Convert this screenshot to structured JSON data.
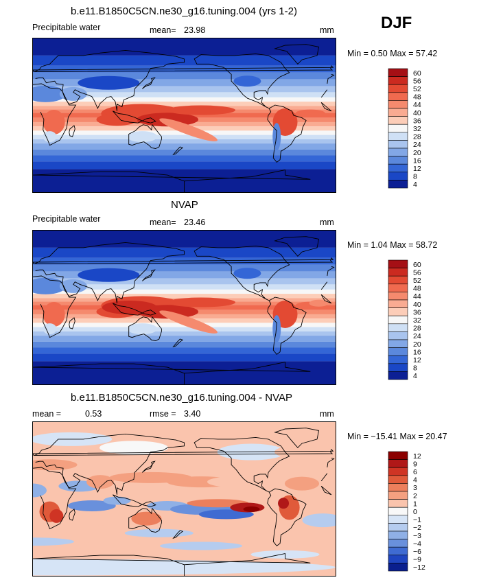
{
  "season": "DJF",
  "panels": [
    {
      "title": "b.e11.B1850C5CN.ne30_g16.tuning.004 (yrs 1-2)",
      "field": "Precipitable water",
      "stat1_label": "mean=",
      "stat1_value": "23.98",
      "stat2_label": "",
      "stat2_value": "",
      "units": "mm",
      "minmax": "Min =    0.50 Max =   57.42"
    },
    {
      "title": "NVAP",
      "field": "Precipitable water",
      "stat1_label": "mean=",
      "stat1_value": "23.46",
      "stat2_label": "",
      "stat2_value": "",
      "units": "mm",
      "minmax": "Min =    1.04 Max =   58.72"
    },
    {
      "title": "b.e11.B1850C5CN.ne30_g16.tuning.004 - NVAP",
      "field": "",
      "stat1_label": "mean =",
      "stat1_value": "0.53",
      "stat2_label": "rmse =",
      "stat2_value": "3.40",
      "units": "mm",
      "minmax": "Min =  −15.41 Max =   20.47"
    }
  ],
  "chart_data": [
    {
      "type": "heatmap",
      "title": "b.e11.B1850C5CN.ne30_g16.tuning.004 (yrs 1-2)",
      "variable": "Precipitable water",
      "units": "mm",
      "mean": 23.98,
      "min": 0.5,
      "max": 57.42,
      "colorbar_levels": [
        "60",
        "56",
        "52",
        "48",
        "44",
        "40",
        "36",
        "32",
        "28",
        "24",
        "20",
        "16",
        "12",
        "8",
        "4"
      ],
      "colorbar_colors": [
        "#a50f15",
        "#cb2a20",
        "#e34a33",
        "#f06a4f",
        "#f58a6e",
        "#f9ab92",
        "#fccdb8",
        "#f7f7f7",
        "#cfe0f5",
        "#a9c4ee",
        "#82a7e6",
        "#5b88dc",
        "#3466d6",
        "#1a47c6",
        "#0c1f94"
      ]
    },
    {
      "type": "heatmap",
      "title": "NVAP",
      "variable": "Precipitable water",
      "units": "mm",
      "mean": 23.46,
      "min": 1.04,
      "max": 58.72,
      "colorbar_levels": [
        "60",
        "56",
        "52",
        "48",
        "44",
        "40",
        "36",
        "32",
        "28",
        "24",
        "20",
        "16",
        "12",
        "8",
        "4"
      ],
      "colorbar_colors": [
        "#a50f15",
        "#cb2a20",
        "#e34a33",
        "#f06a4f",
        "#f58a6e",
        "#f9ab92",
        "#fccdb8",
        "#f7f7f7",
        "#cfe0f5",
        "#a9c4ee",
        "#82a7e6",
        "#5b88dc",
        "#3466d6",
        "#1a47c6",
        "#0c1f94"
      ]
    },
    {
      "type": "heatmap",
      "title": "b.e11.B1850C5CN.ne30_g16.tuning.004 - NVAP",
      "units": "mm",
      "mean": 0.53,
      "rmse": 3.4,
      "min": -15.41,
      "max": 20.47,
      "colorbar_levels": [
        "12",
        "9",
        "6",
        "4",
        "3",
        "2",
        "1",
        "0",
        "−1",
        "−2",
        "−3",
        "−4",
        "−6",
        "−9",
        "−12"
      ],
      "colorbar_colors": [
        "#8b0000",
        "#b01818",
        "#cf3424",
        "#e05a3a",
        "#ec7f5c",
        "#f4a080",
        "#fac4ad",
        "#f8f8f8",
        "#d6e4f6",
        "#b5ccef",
        "#8fb0e6",
        "#6990dc",
        "#3f6bd2",
        "#1f45c0",
        "#0a1f8e"
      ]
    }
  ]
}
